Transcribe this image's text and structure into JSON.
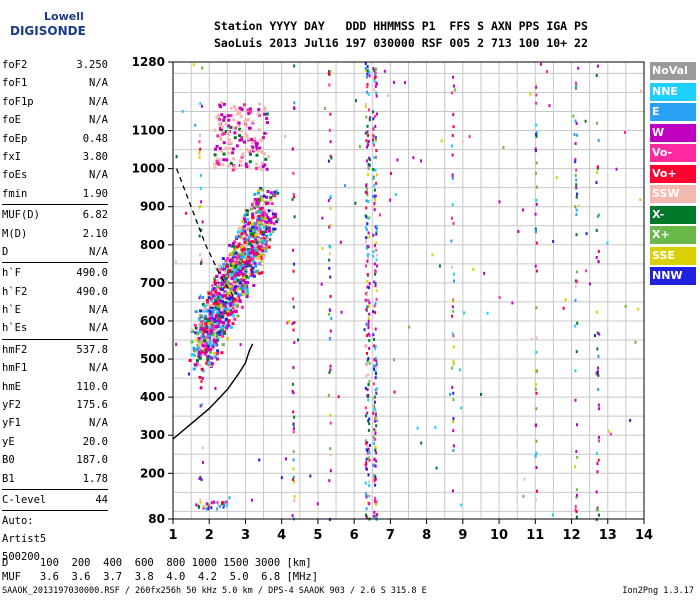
{
  "logo": {
    "line1": "Lowell",
    "line2": "DIGISONDE"
  },
  "header": {
    "line1": "Station YYYY DAY   DDD HHMMSS P1  FFS S AXN PPS IGA PS",
    "line2": "SaoLuis 2013 Jul16 197 030000 RSF 005 2 713 100 10+ 22"
  },
  "params": [
    {
      "label": "foF2",
      "value": "3.250"
    },
    {
      "label": "foF1",
      "value": "N/A"
    },
    {
      "label": "foF1p",
      "value": "N/A"
    },
    {
      "label": "foE",
      "value": "N/A"
    },
    {
      "label": "foEp",
      "value": "0.48"
    },
    {
      "label": "fxI",
      "value": "3.80"
    },
    {
      "label": "foEs",
      "value": "N/A"
    },
    {
      "label": "fmin",
      "value": "1.90"
    },
    {
      "label": "MUF(D)",
      "value": "6.82"
    },
    {
      "label": "M(D)",
      "value": "2.10"
    },
    {
      "label": "D",
      "value": "N/A"
    },
    {
      "label": "h`F",
      "value": "490.0"
    },
    {
      "label": "h`F2",
      "value": "490.0"
    },
    {
      "label": "h`E",
      "value": "N/A"
    },
    {
      "label": "h`Es",
      "value": "N/A"
    },
    {
      "label": "hmF2",
      "value": "537.8"
    },
    {
      "label": "hmF1",
      "value": "N/A"
    },
    {
      "label": "hmE",
      "value": "110.0"
    },
    {
      "label": "yF2",
      "value": "175.6"
    },
    {
      "label": "yF1",
      "value": "N/A"
    },
    {
      "label": "yE",
      "value": "20.0"
    },
    {
      "label": "B0",
      "value": "187.0"
    },
    {
      "label": "B1",
      "value": "1.78"
    },
    {
      "label": "C-level",
      "value": "44"
    }
  ],
  "auto": {
    "line1": "Auto:",
    "line2": "Artist5",
    "line3": "500200"
  },
  "legend": [
    {
      "label": "NoVal",
      "color": "#9a9a9a"
    },
    {
      "label": "NNE",
      "color": "#1ed0ff"
    },
    {
      "label": "E",
      "color": "#2aa0f5"
    },
    {
      "label": "W",
      "color": "#c000c0"
    },
    {
      "label": "Vo-",
      "color": "#ff2aa0"
    },
    {
      "label": "Vo+",
      "color": "#ff0030"
    },
    {
      "label": "SSW",
      "color": "#f5b8b0"
    },
    {
      "label": "X-",
      "color": "#00782a"
    },
    {
      "label": "X+",
      "color": "#6ab84a"
    },
    {
      "label": "SSE",
      "color": "#d8d000"
    },
    {
      "label": "NNW",
      "color": "#2020e0"
    }
  ],
  "dtable": {
    "line1": "D     100  200  400  600  800 1000 1500 3000 [km]",
    "line2": "MUF   3.6  3.6  3.7  3.8  4.0  4.2  5.0  6.8 [MHz]"
  },
  "footer": {
    "left": "SAAOK_2013197030000.RSF / 260fx256h 50 kHz 5.0 km / DPS-4 SAAOK 903 / 2.6 S 315.8 E",
    "right": "Ion2Png 1.3.17"
  },
  "chart_data": {
    "type": "scatter",
    "xlabel": "",
    "ylabel": "",
    "xlim": [
      1,
      14
    ],
    "ylim": [
      80,
      1280
    ],
    "xticks": [
      1,
      2,
      3,
      4,
      5,
      6,
      7,
      8,
      9,
      10,
      11,
      12,
      13,
      14
    ],
    "yticks": [
      80,
      200,
      300,
      400,
      500,
      600,
      700,
      800,
      900,
      1000,
      1100,
      1280
    ],
    "grid": true,
    "profile_curve": {
      "style": "solid",
      "points": [
        [
          1,
          290
        ],
        [
          1.5,
          330
        ],
        [
          2,
          370
        ],
        [
          2.5,
          420
        ],
        [
          2.8,
          460
        ],
        [
          3,
          490
        ],
        [
          3.1,
          520
        ],
        [
          3.2,
          540
        ]
      ]
    },
    "muf_curve": {
      "style": "dashed",
      "points": [
        [
          1.1,
          1000
        ],
        [
          1.5,
          900
        ],
        [
          1.9,
          800
        ],
        [
          2.3,
          720
        ],
        [
          2.7,
          660
        ]
      ]
    },
    "traces": [
      {
        "name": "F2 trace",
        "freq_range": [
          1.6,
          3.6
        ],
        "height_range": [
          480,
          1000
        ]
      },
      {
        "name": "upper echoes",
        "freq_range": [
          2.0,
          3.6
        ],
        "height_range": [
          1000,
          1160
        ]
      },
      {
        "name": "interference 6.4 MHz",
        "freq_range": [
          6.3,
          6.7
        ],
        "height_range": [
          80,
          1280
        ]
      }
    ]
  }
}
